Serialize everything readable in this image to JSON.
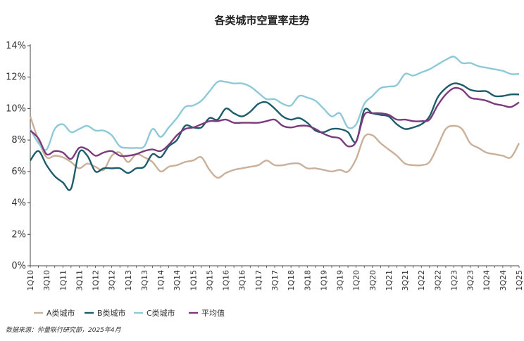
{
  "chart_data": {
    "type": "line",
    "title": "各类城市空置率走势",
    "xlabel": "",
    "ylabel": "",
    "ylim": [
      0,
      14
    ],
    "yticks": [
      "0%",
      "2%",
      "4%",
      "6%",
      "8%",
      "10%",
      "12%",
      "14%"
    ],
    "yticks_values": [
      0,
      2,
      4,
      6,
      8,
      10,
      12,
      14
    ],
    "xticks": [
      "1Q10",
      "3Q10",
      "1Q11",
      "3Q11",
      "1Q12",
      "3Q12",
      "1Q13",
      "3Q13",
      "1Q14",
      "3Q14",
      "1Q15",
      "3Q15",
      "1Q16",
      "3Q16",
      "1Q17",
      "3Q17",
      "1Q18",
      "3Q18",
      "1Q19",
      "3Q19",
      "1Q20",
      "3Q20",
      "1Q21",
      "3Q21",
      "1Q22",
      "3Q22",
      "1Q23",
      "3Q23",
      "1Q24",
      "3Q24",
      "1Q25"
    ],
    "x_count": 61,
    "grid": false,
    "legend_position": "bottom-left",
    "source_note": "数据来源：仲量联行研究部，2025年4月",
    "series": [
      {
        "name": "A类城市",
        "color": "#c9b09a",
        "values": [
          9.5,
          8.0,
          6.9,
          7.0,
          6.9,
          6.6,
          6.2,
          6.5,
          6.3,
          6.1,
          7.0,
          7.2,
          6.6,
          7.1,
          6.9,
          6.6,
          6.0,
          6.3,
          6.4,
          6.6,
          6.7,
          6.9,
          6.1,
          5.6,
          5.9,
          6.1,
          6.2,
          6.3,
          6.4,
          6.7,
          6.4,
          6.4,
          6.5,
          6.5,
          6.2,
          6.2,
          6.1,
          6.0,
          6.1,
          6.0,
          6.8,
          8.2,
          8.3,
          7.8,
          7.4,
          7.0,
          6.5,
          6.4,
          6.4,
          6.6,
          7.6,
          8.7,
          8.9,
          8.7,
          7.8,
          7.5,
          7.2,
          7.1,
          7.0,
          6.9,
          7.8
        ]
      },
      {
        "name": "B类城市",
        "color": "#1d5c6b",
        "values": [
          6.7,
          7.3,
          6.4,
          5.7,
          5.3,
          4.9,
          7.2,
          7.0,
          6.0,
          6.2,
          6.2,
          6.2,
          5.9,
          6.2,
          6.3,
          7.1,
          6.9,
          7.6,
          8.0,
          8.9,
          8.8,
          8.8,
          9.4,
          9.3,
          10.0,
          9.7,
          9.5,
          9.8,
          10.3,
          10.4,
          10.0,
          9.5,
          9.3,
          9.4,
          9.1,
          8.6,
          8.5,
          8.7,
          8.7,
          8.5,
          7.9,
          9.9,
          9.7,
          9.6,
          9.5,
          9.0,
          8.7,
          8.8,
          9.0,
          9.5,
          10.7,
          11.3,
          11.6,
          11.5,
          11.2,
          11.1,
          11.1,
          10.8,
          10.8,
          10.9,
          10.9
        ]
      },
      {
        "name": "C类城市",
        "color": "#8ec9d8",
        "values": [
          8.7,
          7.8,
          7.4,
          8.7,
          9.0,
          8.5,
          8.7,
          8.9,
          8.6,
          8.6,
          8.3,
          7.6,
          7.5,
          7.5,
          7.6,
          8.7,
          8.2,
          8.8,
          9.4,
          10.1,
          10.2,
          10.5,
          11.1,
          11.7,
          11.7,
          11.6,
          11.6,
          11.4,
          11.0,
          10.6,
          10.6,
          10.3,
          10.2,
          10.8,
          10.7,
          10.5,
          10.0,
          9.5,
          9.7,
          8.8,
          9.0,
          10.3,
          10.8,
          11.3,
          11.4,
          11.5,
          12.2,
          12.1,
          12.3,
          12.5,
          12.8,
          13.1,
          13.3,
          12.9,
          12.9,
          12.7,
          12.6,
          12.5,
          12.4,
          12.2,
          12.2
        ]
      },
      {
        "name": "平均值",
        "color": "#7b3a7e",
        "values": [
          8.6,
          8.1,
          7.1,
          7.3,
          7.2,
          6.8,
          7.5,
          7.4,
          7.0,
          7.2,
          7.3,
          7.0,
          7.0,
          7.1,
          7.3,
          7.4,
          7.3,
          7.7,
          8.3,
          8.7,
          8.8,
          9.0,
          9.2,
          9.2,
          9.3,
          9.1,
          9.1,
          9.1,
          9.1,
          9.2,
          9.3,
          8.9,
          8.8,
          8.9,
          8.9,
          8.7,
          8.4,
          8.2,
          8.1,
          7.6,
          7.9,
          9.6,
          9.7,
          9.7,
          9.6,
          9.3,
          9.3,
          9.2,
          9.2,
          9.3,
          10.2,
          10.9,
          11.3,
          11.2,
          10.7,
          10.6,
          10.5,
          10.3,
          10.2,
          10.1,
          10.4
        ]
      }
    ]
  }
}
